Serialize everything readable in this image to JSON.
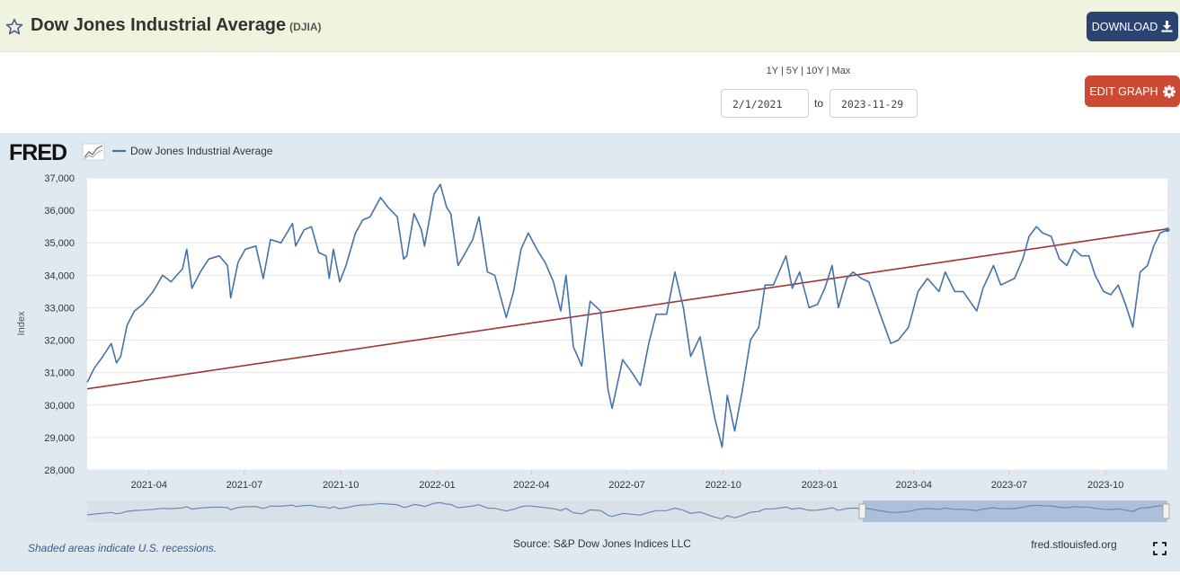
{
  "header": {
    "title": "Dow Jones Industrial Average",
    "symbol": "(DJIA)",
    "download_label": "DOWNLOAD",
    "edit_label": "EDIT GRAPH"
  },
  "controls": {
    "ranges": [
      "1Y",
      "5Y",
      "10Y",
      "Max"
    ],
    "range_separator": "|",
    "start_date": "2/1/2021",
    "to_label": "to",
    "end_date": "2023-11-29"
  },
  "footer": {
    "recessions_note": "Shaded areas indicate U.S. recessions.",
    "source": "Source: S&P Dow Jones Indices LLC",
    "site": "fred.stlouisfed.org"
  },
  "brand": {
    "logo_text": "FRED"
  },
  "colors": {
    "series": "#4572a7",
    "trend": "#a33333",
    "header_bg": "#f0f3de",
    "download_bg": "#2c4372",
    "edit_bg": "#cb4a33",
    "chart_bg": "#e1e9f0"
  },
  "icons": {
    "favorite": "star-icon",
    "download": "download-icon",
    "edit": "gear-icon",
    "fullscreen": "expand-icon"
  },
  "chart_data": {
    "type": "line",
    "ylabel": "Index",
    "ylim": [
      28000,
      37000
    ],
    "y_ticks": [
      28000,
      29000,
      30000,
      31000,
      32000,
      33000,
      34000,
      35000,
      36000,
      37000
    ],
    "y_tick_labels": [
      "28,000",
      "29,000",
      "30,000",
      "31,000",
      "32,000",
      "33,000",
      "34,000",
      "35,000",
      "36,000",
      "37,000"
    ],
    "x_range": [
      "2021-02-01",
      "2023-11-29"
    ],
    "x_ticks": [
      "2021-04-01",
      "2021-07-01",
      "2021-10-01",
      "2022-01-01",
      "2022-04-01",
      "2022-07-01",
      "2022-10-01",
      "2023-01-01",
      "2023-04-01",
      "2023-07-01",
      "2023-10-01"
    ],
    "x_tick_labels": [
      "2021-04",
      "2021-07",
      "2021-10",
      "2022-01",
      "2022-04",
      "2022-07",
      "2022-10",
      "2023-01",
      "2023-04",
      "2023-07",
      "2023-10"
    ],
    "grid": true,
    "legend": "top-left",
    "series": [
      {
        "name": "Dow Jones Industrial Average",
        "points": [
          [
            "2021-02-01",
            30700
          ],
          [
            "2021-02-08",
            31150
          ],
          [
            "2021-02-16",
            31500
          ],
          [
            "2021-02-24",
            31900
          ],
          [
            "2021-03-01",
            31300
          ],
          [
            "2021-03-05",
            31500
          ],
          [
            "2021-03-11",
            32450
          ],
          [
            "2021-03-18",
            32900
          ],
          [
            "2021-03-26",
            33100
          ],
          [
            "2021-04-05",
            33500
          ],
          [
            "2021-04-14",
            34000
          ],
          [
            "2021-04-22",
            33800
          ],
          [
            "2021-05-03",
            34200
          ],
          [
            "2021-05-07",
            34800
          ],
          [
            "2021-05-12",
            33600
          ],
          [
            "2021-05-20",
            34100
          ],
          [
            "2021-05-28",
            34500
          ],
          [
            "2021-06-07",
            34600
          ],
          [
            "2021-06-15",
            34300
          ],
          [
            "2021-06-18",
            33300
          ],
          [
            "2021-06-25",
            34400
          ],
          [
            "2021-07-02",
            34800
          ],
          [
            "2021-07-12",
            34900
          ],
          [
            "2021-07-19",
            33900
          ],
          [
            "2021-07-26",
            35100
          ],
          [
            "2021-08-05",
            35000
          ],
          [
            "2021-08-16",
            35600
          ],
          [
            "2021-08-19",
            34900
          ],
          [
            "2021-08-27",
            35400
          ],
          [
            "2021-09-03",
            35500
          ],
          [
            "2021-09-10",
            34700
          ],
          [
            "2021-09-17",
            34600
          ],
          [
            "2021-09-20",
            33900
          ],
          [
            "2021-09-24",
            34800
          ],
          [
            "2021-09-30",
            33800
          ],
          [
            "2021-10-06",
            34300
          ],
          [
            "2021-10-15",
            35300
          ],
          [
            "2021-10-22",
            35700
          ],
          [
            "2021-10-29",
            35800
          ],
          [
            "2021-11-08",
            36400
          ],
          [
            "2021-11-15",
            36100
          ],
          [
            "2021-11-24",
            35800
          ],
          [
            "2021-11-30",
            34500
          ],
          [
            "2021-12-03",
            34600
          ],
          [
            "2021-12-10",
            35900
          ],
          [
            "2021-12-17",
            35400
          ],
          [
            "2021-12-20",
            34900
          ],
          [
            "2021-12-29",
            36500
          ],
          [
            "2022-01-04",
            36800
          ],
          [
            "2022-01-10",
            36100
          ],
          [
            "2022-01-14",
            35900
          ],
          [
            "2022-01-21",
            34300
          ],
          [
            "2022-01-28",
            34700
          ],
          [
            "2022-02-04",
            35100
          ],
          [
            "2022-02-10",
            35800
          ],
          [
            "2022-02-18",
            34100
          ],
          [
            "2022-02-25",
            34000
          ],
          [
            "2022-03-08",
            32700
          ],
          [
            "2022-03-15",
            33500
          ],
          [
            "2022-03-22",
            34800
          ],
          [
            "2022-03-29",
            35300
          ],
          [
            "2022-04-08",
            34700
          ],
          [
            "2022-04-14",
            34400
          ],
          [
            "2022-04-22",
            33800
          ],
          [
            "2022-04-29",
            32900
          ],
          [
            "2022-05-04",
            34000
          ],
          [
            "2022-05-11",
            31800
          ],
          [
            "2022-05-19",
            31200
          ],
          [
            "2022-05-27",
            33200
          ],
          [
            "2022-06-06",
            32900
          ],
          [
            "2022-06-13",
            30500
          ],
          [
            "2022-06-17",
            29900
          ],
          [
            "2022-06-27",
            31400
          ],
          [
            "2022-07-06",
            31000
          ],
          [
            "2022-07-14",
            30600
          ],
          [
            "2022-07-22",
            31900
          ],
          [
            "2022-07-29",
            32800
          ],
          [
            "2022-08-08",
            32800
          ],
          [
            "2022-08-16",
            34100
          ],
          [
            "2022-08-24",
            33000
          ],
          [
            "2022-08-31",
            31500
          ],
          [
            "2022-09-09",
            32100
          ],
          [
            "2022-09-16",
            30800
          ],
          [
            "2022-09-23",
            29600
          ],
          [
            "2022-09-30",
            28700
          ],
          [
            "2022-10-05",
            30300
          ],
          [
            "2022-10-12",
            29200
          ],
          [
            "2022-10-19",
            30400
          ],
          [
            "2022-10-27",
            32000
          ],
          [
            "2022-11-04",
            32400
          ],
          [
            "2022-11-10",
            33700
          ],
          [
            "2022-11-18",
            33700
          ],
          [
            "2022-11-30",
            34600
          ],
          [
            "2022-12-06",
            33600
          ],
          [
            "2022-12-13",
            34100
          ],
          [
            "2022-12-22",
            33000
          ],
          [
            "2022-12-30",
            33100
          ],
          [
            "2023-01-06",
            33600
          ],
          [
            "2023-01-13",
            34300
          ],
          [
            "2023-01-19",
            33000
          ],
          [
            "2023-01-27",
            33900
          ],
          [
            "2023-02-02",
            34100
          ],
          [
            "2023-02-10",
            33900
          ],
          [
            "2023-02-17",
            33800
          ],
          [
            "2023-03-01",
            32700
          ],
          [
            "2023-03-10",
            31900
          ],
          [
            "2023-03-17",
            32000
          ],
          [
            "2023-03-27",
            32400
          ],
          [
            "2023-04-05",
            33500
          ],
          [
            "2023-04-14",
            33900
          ],
          [
            "2023-04-25",
            33500
          ],
          [
            "2023-05-01",
            34100
          ],
          [
            "2023-05-10",
            33500
          ],
          [
            "2023-05-18",
            33500
          ],
          [
            "2023-05-31",
            32900
          ],
          [
            "2023-06-06",
            33600
          ],
          [
            "2023-06-16",
            34300
          ],
          [
            "2023-06-23",
            33700
          ],
          [
            "2023-07-06",
            33900
          ],
          [
            "2023-07-14",
            34500
          ],
          [
            "2023-07-20",
            35200
          ],
          [
            "2023-07-27",
            35500
          ],
          [
            "2023-08-02",
            35300
          ],
          [
            "2023-08-10",
            35200
          ],
          [
            "2023-08-18",
            34500
          ],
          [
            "2023-08-25",
            34300
          ],
          [
            "2023-09-01",
            34800
          ],
          [
            "2023-09-08",
            34600
          ],
          [
            "2023-09-15",
            34600
          ],
          [
            "2023-09-21",
            34000
          ],
          [
            "2023-09-29",
            33500
          ],
          [
            "2023-10-06",
            33400
          ],
          [
            "2023-10-13",
            33700
          ],
          [
            "2023-10-20",
            33100
          ],
          [
            "2023-10-27",
            32400
          ],
          [
            "2023-11-03",
            34100
          ],
          [
            "2023-11-10",
            34300
          ],
          [
            "2023-11-16",
            34900
          ],
          [
            "2023-11-22",
            35300
          ],
          [
            "2023-11-29",
            35400
          ]
        ]
      },
      {
        "points": [
          [
            "2021-02-01",
            30500
          ],
          [
            "2023-11-29",
            35430
          ]
        ]
      }
    ]
  }
}
